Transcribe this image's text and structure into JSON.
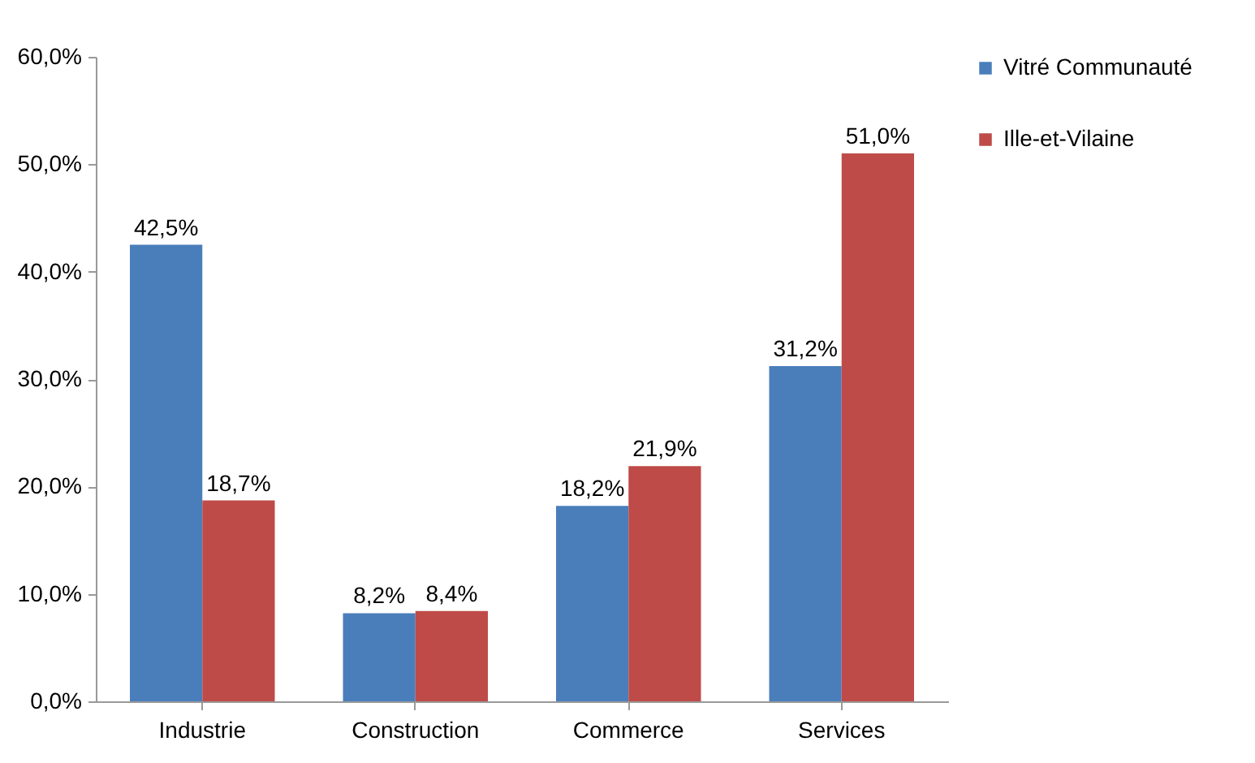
{
  "chart_data": {
    "type": "bar",
    "categories": [
      "Industrie",
      "Construction",
      "Commerce",
      "Services"
    ],
    "series": [
      {
        "name": "Vitré Communauté",
        "color": "#4a7ebb",
        "values": [
          42.5,
          8.2,
          18.2,
          31.2
        ],
        "value_labels": [
          "42,5%",
          "8,2%",
          "18,2%",
          "31,2%"
        ]
      },
      {
        "name": "Ille-et-Vilaine",
        "color": "#be4b48",
        "values": [
          18.7,
          8.4,
          21.9,
          51.0
        ],
        "value_labels": [
          "18,7%",
          "8,4%",
          "21,9%",
          "51,0%"
        ]
      }
    ],
    "ylim": [
      0,
      60
    ],
    "yticks": [
      {
        "value": 0,
        "label": "0,0%"
      },
      {
        "value": 10,
        "label": "10,0%"
      },
      {
        "value": 20,
        "label": "20,0%"
      },
      {
        "value": 30,
        "label": "30,0%"
      },
      {
        "value": 40,
        "label": "40,0%"
      },
      {
        "value": 50,
        "label": "50,0%"
      },
      {
        "value": 60,
        "label": "60,0%"
      }
    ],
    "grid": false,
    "legend": "right"
  }
}
